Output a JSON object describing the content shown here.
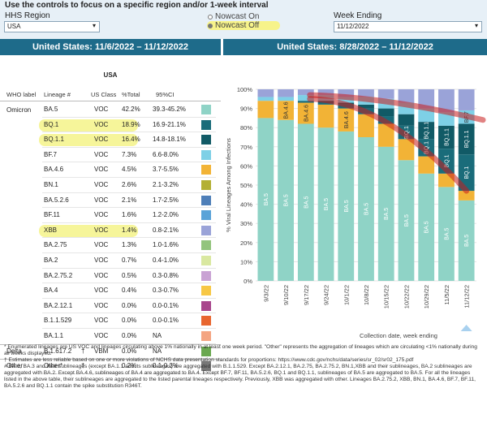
{
  "controls": {
    "instruction": "Use the controls to focus on a specific region and/or 1-week interval",
    "region_label": "HHS Region",
    "region_value": "USA",
    "nowcast_on": "Nowcast On",
    "nowcast_off": "Nowcast Off",
    "week_label": "Week Ending",
    "week_value": "11/12/2022"
  },
  "left_header": "United States: 11/6/2022 – 11/12/2022",
  "right_header": "United States: 8/28/2022 – 11/12/2022",
  "table": {
    "title": "USA",
    "headers": {
      "who": "WHO label",
      "lineage": "Lineage #",
      "usclass": "US Class",
      "pct": "%Total",
      "ci": "95%CI"
    },
    "groups": {
      "omicron": "Omicron",
      "delta": "Delta",
      "other": "Other"
    },
    "rows": [
      {
        "lineage": "BA.5",
        "cls": "VOC",
        "pct": "42.2%",
        "ci": "39.3-45.2%",
        "color": "#8fd3c6",
        "hl": false
      },
      {
        "lineage": "BQ.1",
        "cls": "VOC",
        "pct": "18.9%",
        "ci": "16.9-21.1%",
        "color": "#1a6c7a",
        "hl": true
      },
      {
        "lineage": "BQ.1.1",
        "cls": "VOC",
        "pct": "16.4%",
        "ci": "14.8-18.1%",
        "color": "#115a66",
        "hl": true
      },
      {
        "lineage": "BF.7",
        "cls": "VOC",
        "pct": "7.3%",
        "ci": "6.6-8.0%",
        "color": "#7ed0e6",
        "hl": false
      },
      {
        "lineage": "BA.4.6",
        "cls": "VOC",
        "pct": "4.5%",
        "ci": "3.7-5.5%",
        "color": "#f2b336",
        "hl": false
      },
      {
        "lineage": "BN.1",
        "cls": "VOC",
        "pct": "2.6%",
        "ci": "2.1-3.2%",
        "color": "#b3b034",
        "hl": false
      },
      {
        "lineage": "BA.5.2.6",
        "cls": "VOC",
        "pct": "2.1%",
        "ci": "1.7-2.5%",
        "color": "#4e7fb8",
        "hl": false
      },
      {
        "lineage": "BF.11",
        "cls": "VOC",
        "pct": "1.6%",
        "ci": "1.2-2.0%",
        "color": "#5aa3d8",
        "hl": false
      },
      {
        "lineage": "XBB",
        "cls": "VOC",
        "pct": "1.4%",
        "ci": "0.8-2.1%",
        "color": "#9aa3d8",
        "hl": true
      },
      {
        "lineage": "BA.2.75",
        "cls": "VOC",
        "pct": "1.3%",
        "ci": "1.0-1.6%",
        "color": "#93c47d",
        "hl": false
      },
      {
        "lineage": "BA.2",
        "cls": "VOC",
        "pct": "0.7%",
        "ci": "0.4-1.0%",
        "color": "#d9e8a0",
        "hl": false
      },
      {
        "lineage": "BA.2.75.2",
        "cls": "VOC",
        "pct": "0.5%",
        "ci": "0.3-0.8%",
        "color": "#c9a2d4",
        "hl": false
      },
      {
        "lineage": "BA.4",
        "cls": "VOC",
        "pct": "0.4%",
        "ci": "0.3-0.7%",
        "color": "#f7c744",
        "hl": false
      },
      {
        "lineage": "BA.2.12.1",
        "cls": "VOC",
        "pct": "0.0%",
        "ci": "0.0-0.1%",
        "color": "#a8468c",
        "hl": false
      },
      {
        "lineage": "B.1.1.529",
        "cls": "VOC",
        "pct": "0.0%",
        "ci": "0.0-0.1%",
        "color": "#e8662f",
        "hl": false
      },
      {
        "lineage": "BA.1.1",
        "cls": "VOC",
        "pct": "0.0%",
        "ci": "NA",
        "color": "#f4a582",
        "hl": false
      },
      {
        "lineage": "B.1.617.2",
        "cls": "VBM",
        "pct": "0.0%",
        "ci": "NA",
        "color": "#6aa84f",
        "hl": false,
        "dagger": "†"
      },
      {
        "lineage": "Other*",
        "cls": "",
        "pct": "0.2%",
        "ci": "0.1-0.3%",
        "color": "#777777",
        "hl": false,
        "dagger": "†"
      }
    ]
  },
  "chart_data": {
    "type": "bar",
    "stacked": true,
    "ylabel": "% Viral Lineages Among Infections",
    "xlabel": "Collection date, week ending",
    "yticks": [
      "0%",
      "10%",
      "20%",
      "30%",
      "40%",
      "50%",
      "60%",
      "70%",
      "80%",
      "90%",
      "100%"
    ],
    "ylim": [
      0,
      100
    ],
    "categories": [
      "9/3/22",
      "9/10/22",
      "9/17/22",
      "9/24/22",
      "10/1/22",
      "10/8/22",
      "10/15/22",
      "10/22/22",
      "10/29/22",
      "11/5/22",
      "11/12/22"
    ],
    "series": [
      {
        "name": "BA.5",
        "color": "#8fd3c6",
        "values": [
          85,
          84,
          82,
          80,
          78,
          75,
          70,
          63,
          56,
          49,
          42
        ]
      },
      {
        "name": "BA.4.6",
        "color": "#f2b336",
        "values": [
          9,
          10,
          11,
          12,
          12,
          12,
          12,
          11,
          9,
          7,
          5
        ]
      },
      {
        "name": "BQ.1",
        "color": "#1a6c7a",
        "values": [
          0,
          0,
          1,
          1,
          2,
          3,
          4,
          7,
          9,
          13,
          19
        ]
      },
      {
        "name": "BQ.1.1",
        "color": "#115a66",
        "values": [
          0,
          0,
          0,
          1,
          1,
          2,
          4,
          6,
          9,
          12,
          16
        ]
      },
      {
        "name": "BF.7",
        "color": "#7ed0e6",
        "values": [
          2,
          2,
          3,
          3,
          3,
          4,
          5,
          6,
          7,
          7,
          7
        ]
      },
      {
        "name": "Other",
        "color": "#9aa3d8",
        "values": [
          4,
          4,
          3,
          3,
          4,
          4,
          5,
          7,
          10,
          12,
          11
        ]
      }
    ],
    "bar_labels": {
      "BA.5": [
        "BA.5",
        "BA.5",
        "BA.5",
        "BA.5",
        "BA.5",
        "BA.5",
        "BA.5",
        "BA.5",
        "BA.5",
        "BA.5",
        "BA.5"
      ],
      "BA.4.6": [
        "",
        "BA.4.6",
        "BA.4.6",
        "",
        "BA.4.6",
        "",
        "",
        "",
        "",
        "",
        ""
      ],
      "BQ.1": [
        "",
        "",
        "",
        "",
        "",
        "",
        "",
        "BQ.1",
        "BQ.1",
        "BQ.1",
        "BQ.1"
      ],
      "BQ.1.1": [
        "",
        "",
        "",
        "",
        "",
        "",
        "",
        "",
        "BQ.1.1",
        "BQ.1.1",
        "BQ.1.1"
      ],
      "BF.7": [
        "",
        "",
        "",
        "",
        "",
        "",
        "",
        "",
        "",
        "",
        "BF.7"
      ]
    }
  },
  "footnotes": [
    "*      Enumerated lineages are US VOC and lineages circulating above 1% nationally in at least one week period. \"Other\" represents the aggregation of lineages which are circulating <1% nationally during all weeks displayed.",
    "†      Estimates are less reliable based on one or more violations of NCHS data presentation standards for proportions: https://www.cdc.gov/nchs/data/series/sr_02/sr02_175.pdf",
    "#      BA.1, BA.3 and their sublineages (except BA.1.1 and its sublineages) are aggregated with B.1.1.529. Except BA.2.12.1, BA.2.75, BA.2.75.2, BN.1,XBB and their sublineages, BA.2 sublineages are aggregated with BA.2. Except BA.4.6, sublineages of BA.4 are aggregated to BA.4. Except BF.7, BF.11, BA.5.2.6, BQ.1 and BQ.1.1, sublineages of BA.5 are aggregated to BA.5. For all the lineages listed in the above table, their sublineages are aggregated to the listed parental lineages respectively. Previously, XBB was aggregated with other. Lineages BA.2.75.2, XBB, BN.1, BA.4.6, BF.7, BF.11, BA.5.2.6 and BQ.1.1 contain the spike substitution R346T."
  ]
}
